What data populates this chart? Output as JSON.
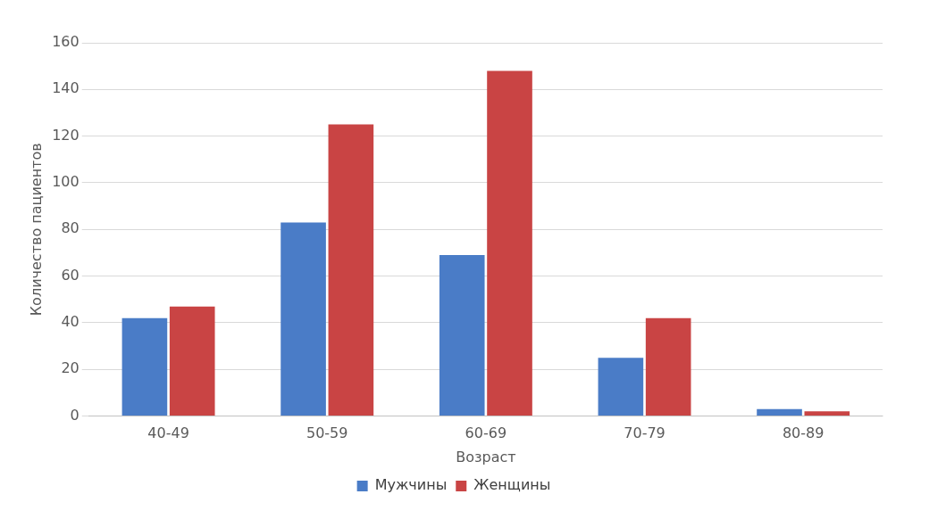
{
  "chart_data": {
    "type": "bar",
    "xlabel": "Возраст",
    "ylabel": "Количество пациентов",
    "categories": [
      "40-49",
      "50-59",
      "60-69",
      "70-79",
      "80-89"
    ],
    "series": [
      {
        "name": "Мужчины",
        "color": "#4a7cc7",
        "values": [
          42,
          83,
          69,
          25,
          3
        ]
      },
      {
        "name": "Женщины",
        "color": "#c94444",
        "values": [
          47,
          125,
          148,
          42,
          2
        ]
      }
    ],
    "ylim": [
      0,
      160
    ],
    "yticks": [
      0,
      20,
      40,
      60,
      80,
      100,
      120,
      140,
      160
    ],
    "grid": "y",
    "legend": "bottom"
  }
}
